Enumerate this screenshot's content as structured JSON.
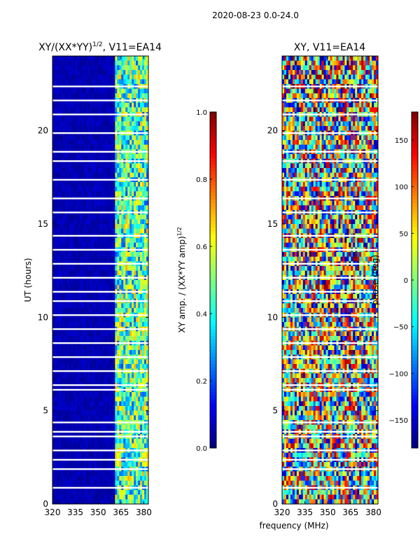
{
  "figure": {
    "suptitle": "2020-08-23 0.0-24.0",
    "xlabel": "frequency (MHz)"
  },
  "colormap": [
    "#00007f",
    "#0000ff",
    "#007fff",
    "#00ffff",
    "#7fff7f",
    "#ffff00",
    "#ff7f00",
    "#ff0000",
    "#7f0000"
  ],
  "chart_data": [
    {
      "type": "heatmap",
      "title": "XY/(XX*YY)^1/2, V11=EA14",
      "title_main": "XY/(XX*YY)",
      "title_sup": "1/2",
      "title_tail": ", V11=EA14",
      "xlabel": "frequency (MHz)",
      "ylabel": "UT (hours)",
      "xlim": [
        320,
        383
      ],
      "ylim": [
        0,
        24
      ],
      "xticks": [
        320,
        335,
        350,
        365,
        380
      ],
      "yticks": [
        0,
        5,
        10,
        15,
        20
      ],
      "vlim": [
        0.0,
        1.0
      ],
      "description_bands": [
        {
          "from": 320,
          "to": 361,
          "level": 0.05
        },
        {
          "from": 361,
          "to": 383,
          "level": 0.45
        }
      ],
      "colorbar": {
        "label": "XY amp. / (XX*YY amp)^1/2",
        "label_main": "XY amp. / (XX*YY amp)",
        "label_sup": "1/2",
        "ticks": [
          "0.0",
          "0.2",
          "0.4",
          "0.6",
          "0.8",
          "1.0"
        ],
        "tick_values": [
          0.0,
          0.2,
          0.4,
          0.6,
          0.8,
          1.0
        ]
      }
    },
    {
      "type": "heatmap",
      "title": "XY, V11=EA14",
      "xlabel": "frequency (MHz)",
      "ylabel": "",
      "xlim": [
        320,
        383
      ],
      "ylim": [
        0,
        24
      ],
      "xticks": [
        320,
        335,
        350,
        365,
        380
      ],
      "yticks": [
        0,
        5,
        10,
        15,
        20
      ],
      "vlim": [
        -180,
        180
      ],
      "colorbar": {
        "label": "phase (deg)",
        "ticks": [
          "−150",
          "−100",
          "−50",
          "0",
          "50",
          "100",
          "150"
        ],
        "tick_values": [
          -150,
          -100,
          -50,
          0,
          50,
          100,
          150
        ]
      }
    }
  ]
}
